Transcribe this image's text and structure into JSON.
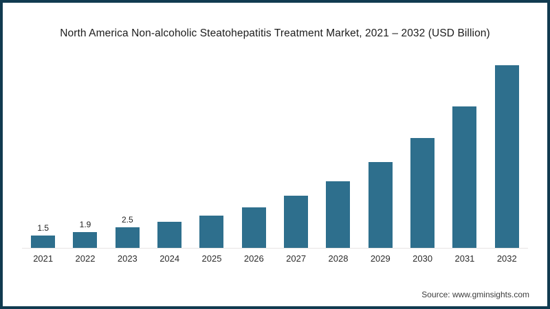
{
  "frame": {
    "border_color": "#113b50",
    "background": "#ffffff"
  },
  "title": "North America Non-alcoholic Steatohepatitis Treatment Market, 2021 – 2032 (USD Billion)",
  "source": "Source: www.gminsights.com",
  "chart_data": {
    "type": "bar",
    "title": "North America Non-alcoholic Steatohepatitis Treatment Market, 2021 – 2032 (USD Billion)",
    "categories": [
      "2021",
      "2022",
      "2023",
      "2024",
      "2025",
      "2026",
      "2027",
      "2028",
      "2029",
      "2030",
      "2031",
      "2032"
    ],
    "values": [
      1.5,
      1.9,
      2.5,
      3.2,
      3.9,
      4.9,
      6.3,
      8.1,
      10.4,
      13.3,
      17.2,
      22.2
    ],
    "data_labels": [
      "1.5",
      "1.9",
      "2.5",
      "",
      "",
      "",
      "",
      "",
      "",
      "",
      "",
      ""
    ],
    "xlabel": "",
    "ylabel": "",
    "ylim": [
      0,
      24
    ],
    "bar_color": "#2e6f8d",
    "axis_line_color": "#e7e4e4",
    "grid": false,
    "legend": false,
    "yaxis_visible": false
  }
}
